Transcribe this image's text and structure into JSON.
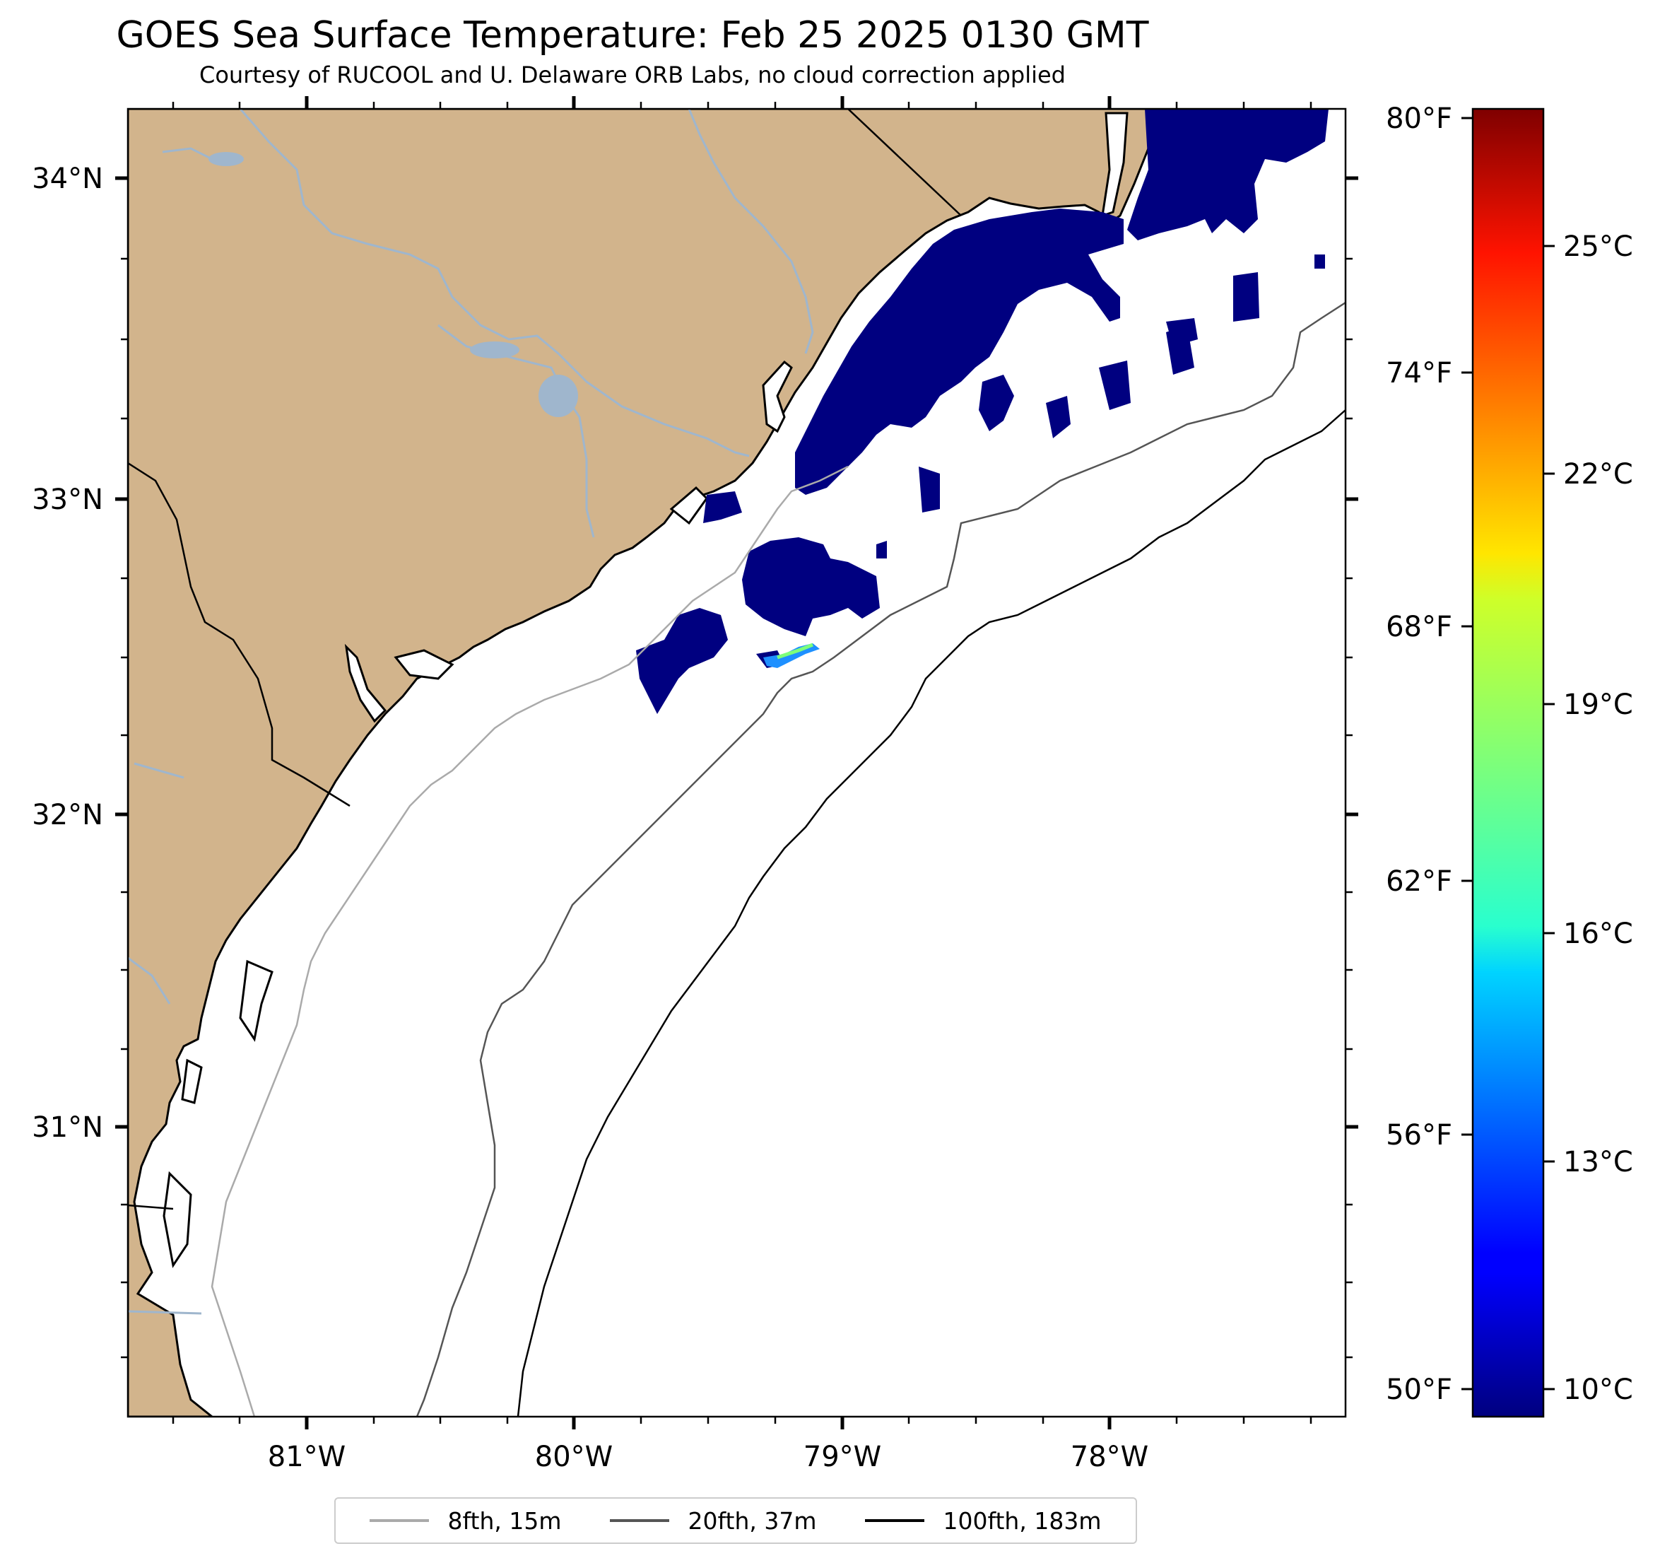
{
  "title": "GOES Sea Surface Temperature: Feb 25 2025 0130 GMT",
  "subtitle": "Courtesy of RUCOOL and U. Delaware ORB Labs, no cloud correction applied",
  "map": {
    "lon_labels": [
      "81°W",
      "80°W",
      "79°W",
      "78°W"
    ],
    "lat_labels": [
      "34°N",
      "33°N",
      "32°N",
      "31°N"
    ],
    "extent": {
      "lon_min": -81.67,
      "lon_max": -77.1,
      "lat_min": 30.18,
      "lat_max": 34.22
    }
  },
  "colorbar": {
    "fahrenheit_labels": [
      "80°F",
      "74°F",
      "68°F",
      "62°F",
      "56°F",
      "50°F"
    ],
    "celsius_labels": [
      "25°C",
      "22°C",
      "19°C",
      "16°C",
      "13°C",
      "10°C"
    ],
    "colormap": "jet",
    "range_c": [
      9.5,
      26.8
    ]
  },
  "legend": {
    "items": [
      {
        "label": "8fth, 15m",
        "color": "#aaaaaa"
      },
      {
        "label": "20fth, 37m",
        "color": "#555555"
      },
      {
        "label": "100fth, 183m",
        "color": "#000000"
      }
    ]
  },
  "colors": {
    "land": "#d2b48c",
    "river": "#9fb6cd",
    "sst_cold": "#000080"
  }
}
